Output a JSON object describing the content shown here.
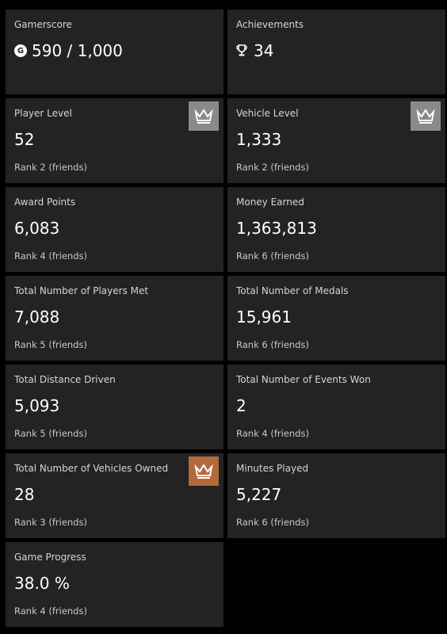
{
  "colors": {
    "background": "#000000",
    "tile": "#232323",
    "crown_silver": "#8a8a8a",
    "crown_bronze": "#b16a3d",
    "crown_icon": "#ffffff"
  },
  "summary": {
    "gamerscore": {
      "label": "Gamerscore",
      "icon": "gamerscore-g-icon",
      "value": "590 / 1,000"
    },
    "achievements": {
      "label": "Achievements",
      "icon": "trophy-icon",
      "value": "34"
    }
  },
  "stats": [
    {
      "label": "Player Level",
      "value": "52",
      "rank": "Rank 2 (friends)",
      "crown": "silver"
    },
    {
      "label": "Vehicle Level",
      "value": "1,333",
      "rank": "Rank 2 (friends)",
      "crown": "silver"
    },
    {
      "label": "Award Points",
      "value": "6,083",
      "rank": "Rank 4 (friends)",
      "crown": ""
    },
    {
      "label": "Money Earned",
      "value": "1,363,813",
      "rank": "Rank 6 (friends)",
      "crown": ""
    },
    {
      "label": "Total Number of Players Met",
      "value": "7,088",
      "rank": "Rank 5 (friends)",
      "crown": ""
    },
    {
      "label": "Total Number of Medals",
      "value": "15,961",
      "rank": "Rank 6 (friends)",
      "crown": ""
    },
    {
      "label": "Total Distance Driven",
      "value": "5,093",
      "rank": "Rank 5 (friends)",
      "crown": ""
    },
    {
      "label": "Total Number of Events Won",
      "value": "2",
      "rank": "Rank 4 (friends)",
      "crown": ""
    },
    {
      "label": "Total Number of Vehicles Owned",
      "value": "28",
      "rank": "Rank 3 (friends)",
      "crown": "bronze"
    },
    {
      "label": "Minutes Played",
      "value": "5,227",
      "rank": "Rank 6 (friends)",
      "crown": ""
    },
    {
      "label": "Game Progress",
      "value": "38.0 %",
      "rank": "Rank 4 (friends)",
      "crown": ""
    }
  ]
}
